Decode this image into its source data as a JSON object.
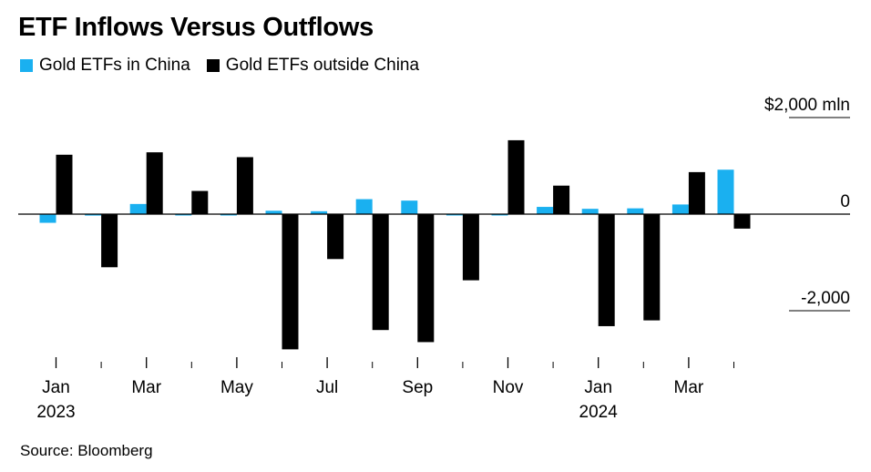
{
  "title": "ETF Inflows Versus Outflows",
  "source": "Source: Bloomberg",
  "colors": {
    "china": "#1ab0f0",
    "outside": "#000000",
    "axis": "#000000",
    "grid": "#000000"
  },
  "chart_data": {
    "type": "bar",
    "title": "ETF Inflows Versus Outflows",
    "unit": "mln",
    "ylim": [
      -2000,
      2000
    ],
    "ytick_labels": [
      {
        "value": 2000,
        "label": "$2,000 mln"
      },
      {
        "value": 0,
        "label": "0"
      },
      {
        "value": -2000,
        "label": "-2,000"
      }
    ],
    "legend_position": "top-left",
    "categories": [
      "Jan 2023",
      "Feb 2023",
      "Mar 2023",
      "Apr 2023",
      "May 2023",
      "Jun 2023",
      "Jul 2023",
      "Aug 2023",
      "Sep 2023",
      "Oct 2023",
      "Nov 2023",
      "Dec 2023",
      "Jan 2024",
      "Feb 2024",
      "Mar 2024",
      "Apr 2024"
    ],
    "x_tick_labels": [
      {
        "index": 0,
        "month": "Jan",
        "year": "2023"
      },
      {
        "index": 2,
        "month": "Mar",
        "year": ""
      },
      {
        "index": 4,
        "month": "May",
        "year": ""
      },
      {
        "index": 6,
        "month": "Jul",
        "year": ""
      },
      {
        "index": 8,
        "month": "Sep",
        "year": ""
      },
      {
        "index": 10,
        "month": "Nov",
        "year": ""
      },
      {
        "index": 12,
        "month": "Jan",
        "year": "2024"
      },
      {
        "index": 14,
        "month": "Mar",
        "year": ""
      }
    ],
    "minor_tick_indices": [
      1,
      3,
      5,
      7,
      9,
      11,
      13,
      15
    ],
    "series": [
      {
        "name": "Gold ETFs in China",
        "color_key": "china",
        "values": [
          -180,
          -30,
          210,
          -20,
          -20,
          70,
          60,
          310,
          280,
          -15,
          -15,
          150,
          110,
          120,
          200,
          920
        ]
      },
      {
        "name": "Gold ETFs outside China",
        "color_key": "outside",
        "values": [
          1230,
          -1100,
          1280,
          480,
          1180,
          -2800,
          -930,
          -2400,
          -2650,
          -1370,
          1530,
          590,
          -2320,
          -2200,
          870,
          -300
        ]
      }
    ]
  }
}
